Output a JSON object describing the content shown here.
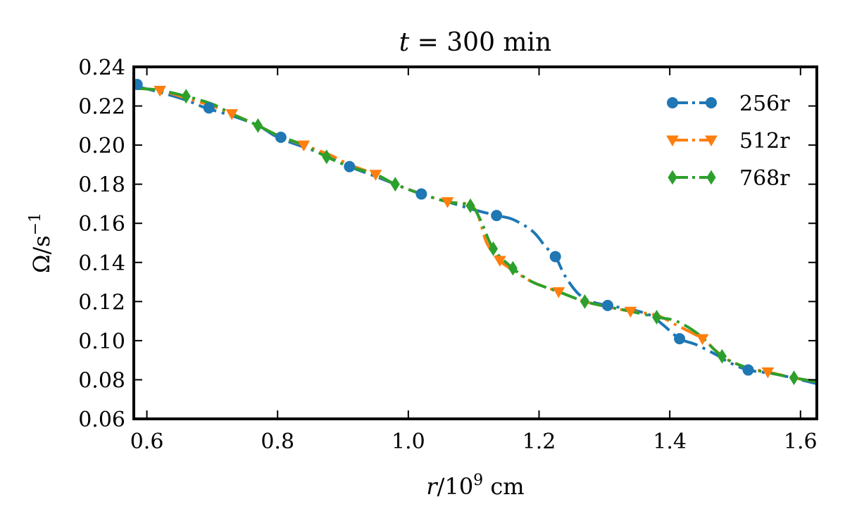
{
  "chart_data": {
    "type": "line",
    "title": {
      "italic": "t",
      "rest": " = 300 min"
    },
    "xlabel": {
      "var": "r",
      "slash": "/10",
      "exp": "9",
      "unit": " cm"
    },
    "ylabel": {
      "main": "Ω/s",
      "exp": "−1"
    },
    "xlim": [
      0.58,
      1.625
    ],
    "ylim": [
      0.06,
      0.24
    ],
    "xticks": [
      0.6,
      0.8,
      1.0,
      1.2,
      1.4,
      1.6
    ],
    "xtick_labels": [
      "0.6",
      "0.8",
      "1.0",
      "1.2",
      "1.4",
      "1.6"
    ],
    "yticks": [
      0.06,
      0.08,
      0.1,
      0.12,
      0.14,
      0.16,
      0.18,
      0.2,
      0.22,
      0.24
    ],
    "ytick_labels": [
      "0.06",
      "0.08",
      "0.10",
      "0.12",
      "0.14",
      "0.16",
      "0.18",
      "0.20",
      "0.22",
      "0.24"
    ],
    "legend_position": "top-right",
    "series": [
      {
        "name": "256r",
        "color": "#1f77b4",
        "marker": "circle",
        "dash": "dashdot",
        "x": [
          0.585,
          0.62,
          0.66,
          0.69,
          0.73,
          0.77,
          0.8,
          0.84,
          0.88,
          0.91,
          0.95,
          0.98,
          1.02,
          1.06,
          1.1,
          1.135,
          1.16,
          1.19,
          1.21,
          1.225,
          1.24,
          1.26,
          1.28,
          1.305,
          1.34,
          1.37,
          1.39,
          1.415,
          1.44,
          1.47,
          1.49,
          1.52,
          1.56,
          1.6,
          1.625
        ],
        "y": [
          0.23,
          0.227,
          0.223,
          0.219,
          0.215,
          0.21,
          0.204,
          0.199,
          0.194,
          0.189,
          0.184,
          0.18,
          0.175,
          0.171,
          0.167,
          0.164,
          0.162,
          0.156,
          0.148,
          0.143,
          0.133,
          0.124,
          0.12,
          0.118,
          0.116,
          0.113,
          0.108,
          0.101,
          0.098,
          0.093,
          0.089,
          0.085,
          0.083,
          0.08,
          0.078
        ],
        "markers_x": [
          0.585,
          0.695,
          0.805,
          0.91,
          1.02,
          1.135,
          1.225,
          1.305,
          1.415,
          1.52
        ],
        "markers_y": [
          0.231,
          0.219,
          0.204,
          0.189,
          0.175,
          0.164,
          0.143,
          0.118,
          0.101,
          0.085
        ]
      },
      {
        "name": "512r",
        "color": "#ff7f0e",
        "marker": "triangle-down",
        "dash": "dashdot",
        "x": [
          0.585,
          0.62,
          0.66,
          0.7,
          0.73,
          0.77,
          0.8,
          0.84,
          0.88,
          0.91,
          0.95,
          0.98,
          1.02,
          1.06,
          1.1,
          1.12,
          1.14,
          1.16,
          1.19,
          1.23,
          1.27,
          1.31,
          1.34,
          1.38,
          1.41,
          1.45,
          1.47,
          1.49,
          1.52,
          1.55,
          1.59,
          1.625
        ],
        "y": [
          0.229,
          0.228,
          0.224,
          0.22,
          0.216,
          0.21,
          0.205,
          0.2,
          0.195,
          0.19,
          0.185,
          0.18,
          0.175,
          0.171,
          0.168,
          0.15,
          0.141,
          0.136,
          0.13,
          0.125,
          0.12,
          0.117,
          0.115,
          0.113,
          0.108,
          0.101,
          0.095,
          0.09,
          0.086,
          0.084,
          0.081,
          0.079
        ],
        "markers_x": [
          0.62,
          0.73,
          0.84,
          0.95,
          1.06,
          1.14,
          1.23,
          1.34,
          1.45,
          1.55
        ],
        "markers_y": [
          0.228,
          0.216,
          0.2,
          0.185,
          0.171,
          0.141,
          0.125,
          0.115,
          0.101,
          0.084
        ]
      },
      {
        "name": "768r",
        "color": "#2ca02c",
        "marker": "diamond",
        "dash": "dashdot",
        "x": [
          0.585,
          0.62,
          0.66,
          0.7,
          0.73,
          0.77,
          0.8,
          0.84,
          0.875,
          0.91,
          0.95,
          0.98,
          1.02,
          1.06,
          1.095,
          1.11,
          1.13,
          1.16,
          1.19,
          1.23,
          1.27,
          1.31,
          1.34,
          1.38,
          1.41,
          1.445,
          1.48,
          1.52,
          1.56,
          1.59,
          1.625
        ],
        "y": [
          0.229,
          0.228,
          0.225,
          0.221,
          0.216,
          0.21,
          0.205,
          0.2,
          0.194,
          0.189,
          0.185,
          0.18,
          0.175,
          0.171,
          0.169,
          0.162,
          0.147,
          0.137,
          0.13,
          0.125,
          0.12,
          0.117,
          0.115,
          0.112,
          0.11,
          0.103,
          0.092,
          0.086,
          0.083,
          0.081,
          0.079
        ],
        "markers_x": [
          0.66,
          0.77,
          0.875,
          0.98,
          1.095,
          1.13,
          1.16,
          1.27,
          1.38,
          1.48,
          1.59
        ],
        "markers_y": [
          0.225,
          0.21,
          0.194,
          0.18,
          0.169,
          0.147,
          0.137,
          0.12,
          0.112,
          0.092,
          0.081
        ]
      }
    ]
  }
}
